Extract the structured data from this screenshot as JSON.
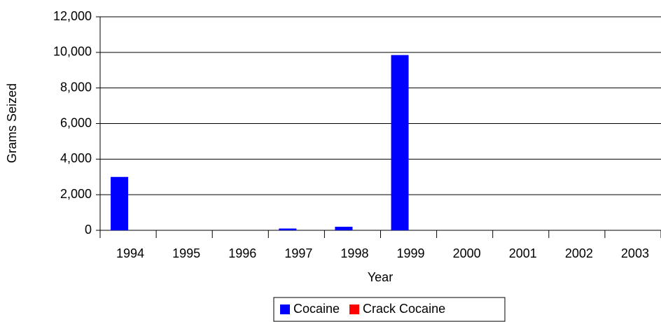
{
  "chart_data": {
    "type": "bar",
    "categories": [
      "1994",
      "1995",
      "1996",
      "1997",
      "1998",
      "1999",
      "2000",
      "2001",
      "2002",
      "2003"
    ],
    "series": [
      {
        "name": "Cocaine",
        "color": "#0000ff",
        "values": [
          3000,
          0,
          0,
          100,
          200,
          9850,
          0,
          0,
          0,
          0
        ]
      },
      {
        "name": "Crack Cocaine",
        "color": "#ff0000",
        "values": [
          0,
          0,
          0,
          0,
          0,
          0,
          0,
          0,
          0,
          0
        ]
      }
    ],
    "x_label": "Year",
    "y_label": "Grams Seized",
    "ylim": [
      0,
      12000
    ],
    "yticks": [
      0,
      {
        "value": 2000,
        "label": "2,000"
      },
      {
        "value": 4000,
        "label": "4,000"
      },
      {
        "value": 6000,
        "label": "6,000"
      },
      {
        "value": 8000,
        "label": "8,000"
      },
      {
        "value": 10000,
        "label": "10,000"
      },
      {
        "value": 12000,
        "label": "12,000"
      }
    ],
    "grid": true
  }
}
